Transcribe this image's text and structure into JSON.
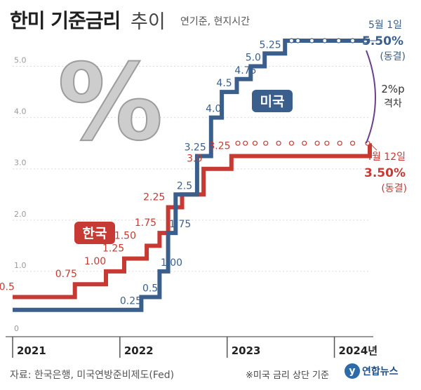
{
  "title": {
    "main": "한미 기준금리",
    "light": "추이",
    "subtitle": "연기준, 현지시간"
  },
  "source": "자료: 한국은행, 미국연방준비제도(Fed)",
  "footnote": "※미국 금리 상단 기준",
  "logo": {
    "mark": "y",
    "text": "연합뉴스",
    "mark_icon": "yonhap-logo-icon"
  },
  "percent_symbol": "%",
  "colors": {
    "us": "#3a5f8c",
    "korea": "#c63a33",
    "gap": "#6a3f8c",
    "grid": "#dcdcdc",
    "axis": "#999999"
  },
  "annotations": {
    "us_end": {
      "date": "5월 1일",
      "value": "5.50%",
      "status": "(동결)"
    },
    "korea_end": {
      "date": "4월 12일",
      "value": "3.50%",
      "status": "(동결)"
    },
    "gap_value": "2%p",
    "gap_text": "격차"
  },
  "chart_data": {
    "type": "line",
    "step": true,
    "title": "한미 기준금리 추이",
    "ylim": [
      0,
      5.8
    ],
    "yticks": [
      "0",
      "1.0",
      "2.0",
      "3.0",
      "4.0",
      "5.0"
    ],
    "x_axis_labels": [
      "2021",
      "2022",
      "2023",
      "2024년"
    ],
    "xlim": [
      2021.0,
      2024.33
    ],
    "legend": [
      "한국",
      "미국"
    ],
    "series": [
      {
        "name": "한국",
        "color": "#c63a33",
        "points": [
          [
            2021.0,
            0.5
          ],
          [
            2021.58,
            0.75
          ],
          [
            2021.87,
            1.0
          ],
          [
            2022.04,
            1.25
          ],
          [
            2022.25,
            1.5
          ],
          [
            2022.37,
            1.75
          ],
          [
            2022.45,
            2.25
          ],
          [
            2022.52,
            2.25
          ],
          [
            2022.58,
            2.5
          ],
          [
            2022.78,
            3.0
          ],
          [
            2023.04,
            3.25
          ],
          [
            2024.33,
            3.5
          ]
        ],
        "labels": [
          {
            "x": 2021.04,
            "y": 0.5,
            "text": "0.5"
          },
          {
            "x": 2021.62,
            "y": 0.75,
            "text": "0.75"
          },
          {
            "x": 2021.89,
            "y": 1.0,
            "text": "1.00"
          },
          {
            "x": 2022.06,
            "y": 1.25,
            "text": "1.25"
          },
          {
            "x": 2022.17,
            "y": 1.5,
            "text": "1.50"
          },
          {
            "x": 2022.36,
            "y": 1.75,
            "text": "1.75"
          },
          {
            "x": 2022.44,
            "y": 2.25,
            "text": "2.25"
          },
          {
            "x": 2022.79,
            "y": 3.0,
            "text": "3.0"
          },
          {
            "x": 2023.05,
            "y": 3.25,
            "text": "3.25"
          }
        ]
      },
      {
        "name": "미국",
        "color": "#3a5f8c",
        "points": [
          [
            2021.0,
            0.25
          ],
          [
            2022.2,
            0.5
          ],
          [
            2022.37,
            1.0
          ],
          [
            2022.45,
            1.75
          ],
          [
            2022.52,
            2.5
          ],
          [
            2022.72,
            3.25
          ],
          [
            2022.85,
            4.0
          ],
          [
            2022.95,
            4.5
          ],
          [
            2023.09,
            4.75
          ],
          [
            2023.22,
            5.0
          ],
          [
            2023.35,
            5.25
          ],
          [
            2023.54,
            5.5
          ],
          [
            2024.33,
            5.5
          ]
        ],
        "labels": [
          {
            "x": 2022.0,
            "y": 0.25,
            "text": "0.25"
          },
          {
            "x": 2022.21,
            "y": 0.5,
            "text": "0.5"
          },
          {
            "x": 2022.38,
            "y": 1.0,
            "text": "1.00"
          },
          {
            "x": 2022.46,
            "y": 1.75,
            "text": "1.75"
          },
          {
            "x": 2022.53,
            "y": 2.5,
            "text": "2.5"
          },
          {
            "x": 2022.6,
            "y": 3.25,
            "text": "3.25"
          },
          {
            "x": 2022.8,
            "y": 4.0,
            "text": "4.0"
          },
          {
            "x": 2022.9,
            "y": 4.5,
            "text": "4.5"
          },
          {
            "x": 2023.07,
            "y": 4.75,
            "text": "4.75"
          },
          {
            "x": 2023.17,
            "y": 5.0,
            "text": "5.0"
          },
          {
            "x": 2023.3,
            "y": 5.25,
            "text": "5.25"
          }
        ]
      }
    ],
    "hold_dots": {
      "미국": [
        2023.6,
        2023.66,
        2023.79,
        2023.91,
        2024.04,
        2024.17,
        2024.29
      ],
      "한국": [
        2023.1,
        2023.17,
        2023.26,
        2023.36,
        2023.48,
        2023.6,
        2023.72,
        2023.84,
        2023.93,
        2024.05,
        2024.17,
        2024.31
      ]
    }
  }
}
